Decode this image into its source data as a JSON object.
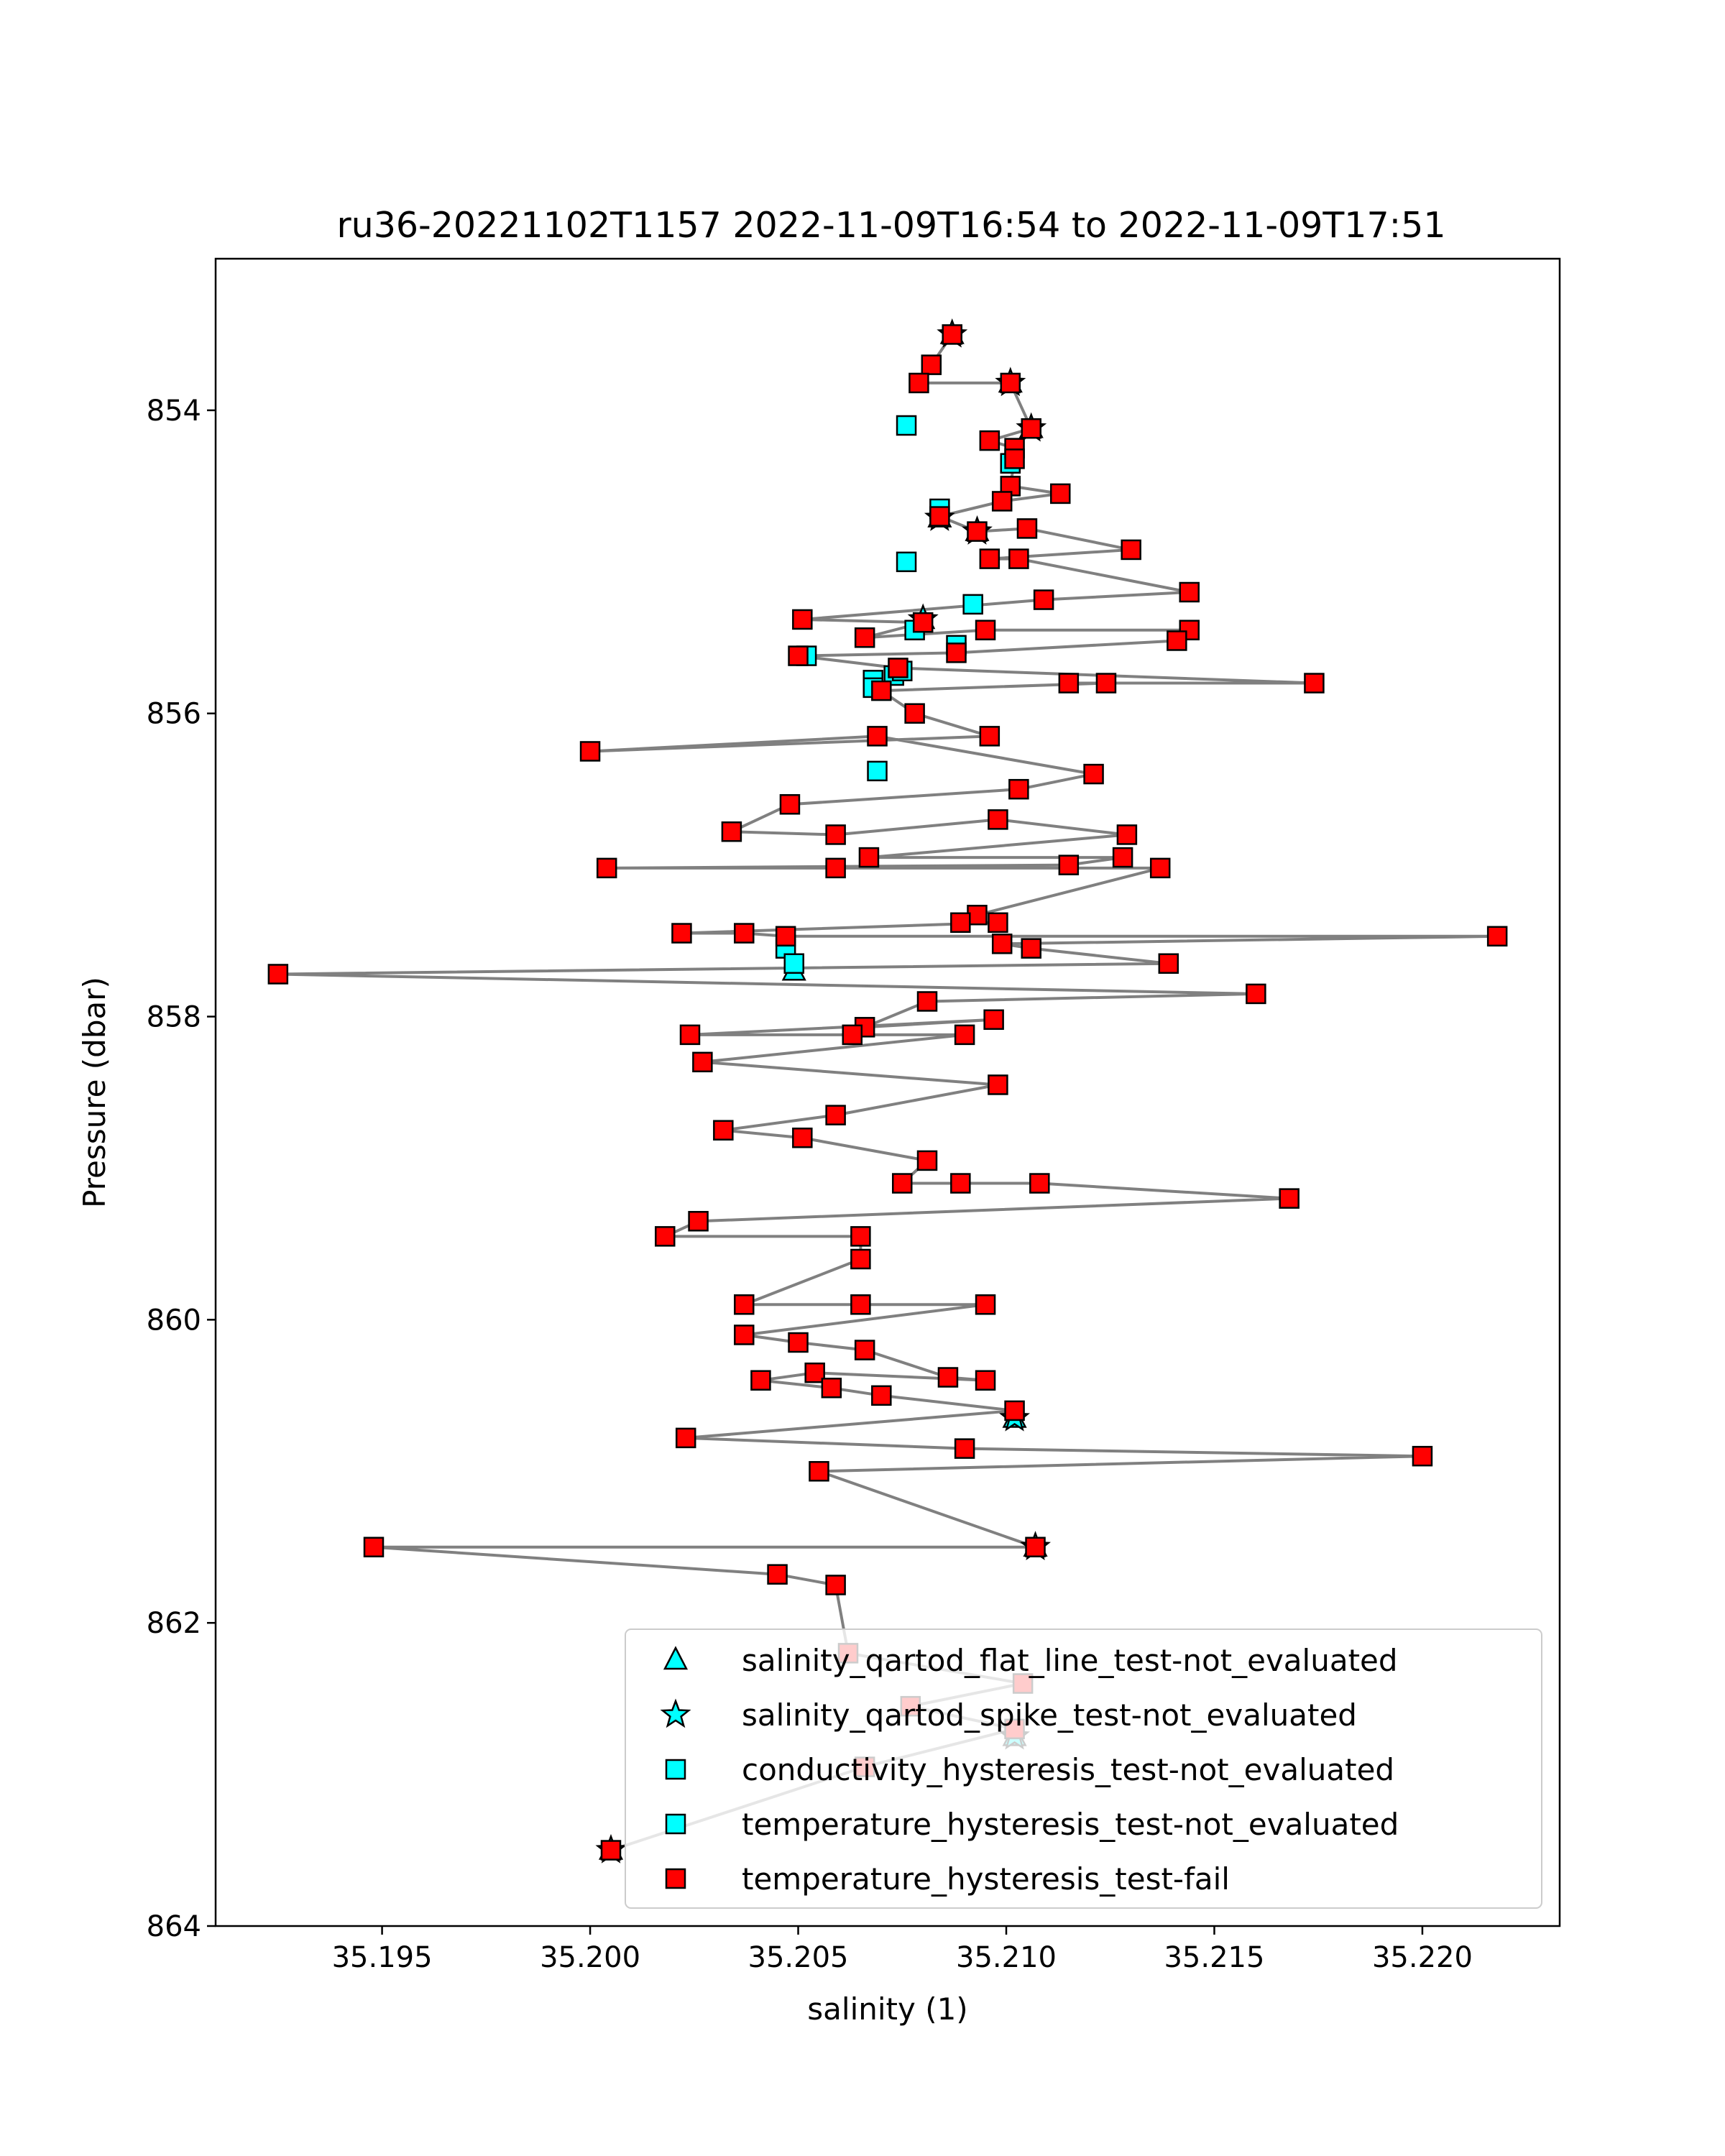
{
  "chart_data": {
    "type": "scatter",
    "title": "ru36-20221102T1157 2022-11-09T16:54 to 2022-11-09T17:51",
    "xlabel": "salinity (1)",
    "ylabel": "Pressure (dbar)",
    "xlim": [
      35.191,
      35.2233
    ],
    "ylim": [
      864.0,
      853.0
    ],
    "y_inverted": true,
    "grid": false,
    "legend_position": "lower-right",
    "x_ticks": [
      35.195,
      35.2,
      35.205,
      35.21,
      35.215,
      35.22
    ],
    "x_tick_labels": [
      "35.195",
      "35.200",
      "35.205",
      "35.210",
      "35.215",
      "35.220"
    ],
    "y_ticks": [
      854,
      856,
      858,
      860,
      862,
      864
    ],
    "y_tick_labels": [
      "854",
      "856",
      "858",
      "860",
      "862",
      "864"
    ],
    "colors": {
      "line": "#808080",
      "fail": "#ff0000",
      "not_evaluated": "#00ffff",
      "edge": "#000000"
    },
    "series": [
      {
        "name": "salinity_qartod_flat_line_test-not_evaluated",
        "marker": "triangle",
        "color": "#00ffff",
        "x": [
          35.2087,
          35.2101,
          35.2106,
          35.2084,
          35.2093,
          35.208,
          35.2049,
          35.2102,
          35.2107,
          35.2102,
          35.2005
        ],
        "y": [
          853.5,
          853.82,
          854.12,
          854.71,
          854.8,
          855.38,
          857.7,
          860.65,
          861.5,
          862.75,
          863.5
        ]
      },
      {
        "name": "salinity_qartod_spike_test-not_evaluated",
        "marker": "star",
        "color": "#00ffff",
        "x": [
          35.2087,
          35.2101,
          35.2106,
          35.2084,
          35.2093,
          35.208,
          35.2102,
          35.2107,
          35.2102,
          35.2005
        ],
        "y": [
          853.5,
          853.82,
          854.12,
          854.71,
          854.8,
          855.38,
          860.65,
          861.5,
          862.75,
          863.5
        ]
      },
      {
        "name": "conductivity_hysteresis_test-not_evaluated",
        "marker": "square",
        "color": "#00ffff",
        "x": [
          35.2076,
          35.2101,
          35.2076,
          35.2092,
          35.2078,
          35.2088,
          35.2052,
          35.2068,
          35.2073,
          35.2075,
          35.2068,
          35.2069,
          35.2047,
          35.2049
        ],
        "y": [
          854.1,
          854.35,
          855.0,
          855.28,
          855.45,
          855.55,
          855.62,
          855.78,
          855.75,
          855.72,
          855.83,
          856.38,
          857.55,
          857.65
        ]
      },
      {
        "name": "temperature_hysteresis_test-not_evaluated",
        "marker": "square",
        "color": "#00ffff",
        "x": [
          35.2101,
          35.2084
        ],
        "y": [
          854.35,
          854.65
        ]
      },
      {
        "name": "temperature_hysteresis_test-fail",
        "marker": "square",
        "color": "#ff0000",
        "x": [
          35.2087,
          35.2082,
          35.2079,
          35.2101,
          35.2106,
          35.2096,
          35.2102,
          35.2102,
          35.2101,
          35.2113,
          35.2099,
          35.2084,
          35.2093,
          35.2105,
          35.213,
          35.2096,
          35.2103,
          35.2144,
          35.2109,
          35.2051,
          35.208,
          35.2066,
          35.2095,
          35.2144,
          35.2141,
          35.2088,
          35.205,
          35.2074,
          35.2174,
          35.2115,
          35.2124,
          35.207,
          35.2078,
          35.2096,
          35.2,
          35.2069,
          35.2121,
          35.2103,
          35.2048,
          35.2034,
          35.2059,
          35.2098,
          35.2129,
          35.2067,
          35.2128,
          35.2115,
          35.2004,
          35.2059,
          35.2137,
          35.2093,
          35.2089,
          35.2098,
          35.2022,
          35.2037,
          35.2047,
          35.2218,
          35.2099,
          35.2106,
          35.2139,
          35.1925,
          35.216,
          35.2081,
          35.2066,
          35.2097,
          35.2024,
          35.2063,
          35.209,
          35.2027,
          35.2098,
          35.2059,
          35.2032,
          35.2051,
          35.2081,
          35.2075,
          35.2089,
          35.2108,
          35.2168,
          35.2026,
          35.2018,
          35.2065,
          35.2065,
          35.2037,
          35.2065,
          35.2095,
          35.2037,
          35.205,
          35.2066,
          35.2086,
          35.2095,
          35.2054,
          35.2041,
          35.2058,
          35.207,
          35.2102,
          35.2023,
          35.209,
          35.22,
          35.2055,
          35.2107,
          35.1948,
          35.2045,
          35.2059,
          35.2062,
          35.2104,
          35.2077,
          35.2102,
          35.2066,
          35.2005
        ],
        "y": [
          853.5,
          853.7,
          853.82,
          853.82,
          854.12,
          854.2,
          854.25,
          854.32,
          854.5,
          854.55,
          854.6,
          854.7,
          854.8,
          854.78,
          854.92,
          854.98,
          854.98,
          855.2,
          855.25,
          855.38,
          855.4,
          855.5,
          855.45,
          855.45,
          855.52,
          855.6,
          855.62,
          855.7,
          855.8,
          855.8,
          855.8,
          855.85,
          856.0,
          856.15,
          856.25,
          856.15,
          856.4,
          856.5,
          856.6,
          856.78,
          856.8,
          856.7,
          856.8,
          856.95,
          856.95,
          857.0,
          857.02,
          857.02,
          857.02,
          857.33,
          857.38,
          857.38,
          857.45,
          857.45,
          857.47,
          857.47,
          857.52,
          857.55,
          857.65,
          857.72,
          857.85,
          857.9,
          858.07,
          858.02,
          858.12,
          858.12,
          858.12,
          858.3,
          858.45,
          858.65,
          858.75,
          858.8,
          858.95,
          859.1,
          859.1,
          859.1,
          859.2,
          859.35,
          859.45,
          859.45,
          859.6,
          859.9,
          859.9,
          859.9,
          860.1,
          860.15,
          860.2,
          860.38,
          860.4,
          860.35,
          860.4,
          860.45,
          860.5,
          860.6,
          860.78,
          860.85,
          860.9,
          861.0,
          861.5,
          861.5,
          861.68,
          861.75,
          862.2,
          862.4,
          862.55,
          862.7,
          862.95,
          863.5
        ]
      }
    ],
    "legend_entries": [
      "salinity_qartod_flat_line_test-not_evaluated",
      "salinity_qartod_spike_test-not_evaluated",
      "conductivity_hysteresis_test-not_evaluated",
      "temperature_hysteresis_test-not_evaluated",
      "temperature_hysteresis_test-fail"
    ]
  }
}
